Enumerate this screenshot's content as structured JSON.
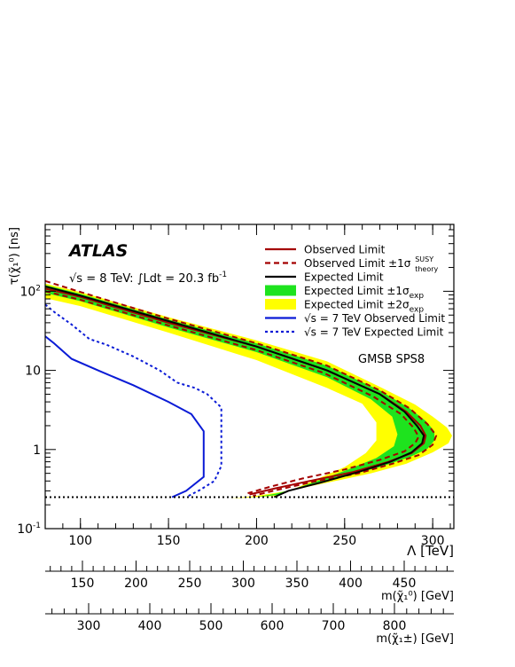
{
  "chart_data": {
    "type": "line",
    "experiment_label": "ATLAS",
    "energy_text": "√s = 8 TeV: ∫Ldt = 20.3 fb",
    "lumi_unit_exp": "-1",
    "model_label": "GMSB SPS8",
    "xlabel": "Λ [TeV]",
    "ylabel": "τ(χ̃₁⁰)  [ns]",
    "xlim": [
      80,
      312
    ],
    "ylim_log": [
      0.1,
      700
    ],
    "x_ticks": [
      "100",
      "150",
      "200",
      "250",
      "300"
    ],
    "y_ticks": [
      {
        "base": "10",
        "exp": "-1",
        "value": 0.1
      },
      {
        "base": "1",
        "exp": "",
        "value": 1
      },
      {
        "base": "10",
        "exp": "",
        "value": 10
      },
      {
        "base": "10",
        "exp": "2",
        "value": 100
      }
    ],
    "legend": [
      {
        "name": "Observed Limit",
        "sup": "",
        "sub": "",
        "style": "solid",
        "color": "#a40000"
      },
      {
        "name": "Observed Limit ±1σ",
        "sup": "SUSY",
        "sub": "theory",
        "style": "dashed",
        "color": "#a40000"
      },
      {
        "name": "Expected Limit",
        "sup": "",
        "sub": "",
        "style": "solid",
        "color": "#000000"
      },
      {
        "name": "Expected Limit ±1σ",
        "sup": "",
        "sub": "exp",
        "style": "band",
        "color": "#1ee31e"
      },
      {
        "name": "Expected Limit ±2σ",
        "sup": "",
        "sub": "exp",
        "style": "band",
        "color": "#ffff00"
      },
      {
        "name": "√s = 7 TeV Observed Limit",
        "sup": "",
        "sub": "",
        "style": "solid",
        "color": "#0a1bd6"
      },
      {
        "name": "√s = 7 TeV Expected Limit",
        "sup": "",
        "sub": "",
        "style": "dotted",
        "color": "#0a1bd6"
      }
    ],
    "series": [
      {
        "name": "Observed Limit",
        "x": [
          80,
          100,
          150,
          200,
          240,
          270,
          285,
          293,
          296,
          295,
          288,
          275,
          255,
          230,
          210,
          196
        ],
        "y": [
          108,
          85,
          40,
          20,
          10,
          5,
          3,
          2,
          1.5,
          1.2,
          0.9,
          0.7,
          0.52,
          0.4,
          0.32,
          0.27
        ]
      },
      {
        "name": "Observed Limit +1σ",
        "x": [
          80,
          100,
          150,
          200,
          240,
          270,
          287,
          297,
          302,
          300,
          292,
          278,
          258,
          232,
          212,
          198
        ],
        "y": [
          135,
          98,
          45,
          22,
          11.5,
          5.6,
          3.3,
          2.1,
          1.5,
          1.15,
          0.85,
          0.67,
          0.5,
          0.39,
          0.31,
          0.26
        ]
      },
      {
        "name": "Observed Limit -1σ",
        "x": [
          80,
          100,
          150,
          200,
          238,
          266,
          282,
          289,
          292,
          290,
          284,
          270,
          250,
          226,
          208,
          195
        ],
        "y": [
          100,
          78,
          37,
          18,
          9.3,
          4.7,
          2.8,
          1.9,
          1.45,
          1.2,
          0.95,
          0.74,
          0.56,
          0.43,
          0.34,
          0.28
        ]
      },
      {
        "name": "Expected Limit",
        "x": [
          80,
          100,
          150,
          200,
          240,
          270,
          284,
          291,
          295,
          294,
          288,
          276,
          258,
          236,
          218,
          210
        ],
        "y": [
          115,
          88,
          42,
          20,
          10,
          5,
          3,
          2,
          1.5,
          1.2,
          0.92,
          0.7,
          0.52,
          0.38,
          0.3,
          0.25
        ]
      },
      {
        "name": "√s = 7 TeV Observed Limit",
        "x": [
          80,
          85,
          95,
          110,
          130,
          150,
          163,
          170,
          170,
          160,
          152
        ],
        "y": [
          27,
          22,
          14,
          10,
          6.5,
          4,
          2.8,
          1.7,
          0.45,
          0.3,
          0.25
        ]
      },
      {
        "name": "√s = 7 TeV Expected Limit",
        "x": [
          80,
          85,
          95,
          105,
          115,
          130,
          145,
          155,
          165,
          172,
          180,
          180,
          176,
          168,
          160
        ],
        "y": [
          68,
          55,
          38,
          25,
          21,
          15,
          10,
          7,
          6,
          5,
          3.4,
          0.62,
          0.4,
          0.31,
          0.25
        ]
      }
    ],
    "bands": [
      {
        "name": "Expected Limit ±2σ",
        "outer_x": [
          80,
          100,
          150,
          200,
          240,
          270,
          290,
          300,
          308,
          311,
          309,
          300,
          285,
          265,
          240,
          218,
          200,
          185
        ],
        "outer_y": [
          125,
          98,
          47,
          24,
          13,
          6.2,
          3.7,
          2.6,
          1.9,
          1.5,
          1.2,
          0.92,
          0.66,
          0.5,
          0.38,
          0.3,
          0.26,
          0.24
        ],
        "inner_x": [
          80,
          100,
          150,
          200,
          240,
          260,
          268,
          268,
          262,
          250,
          235,
          220,
          212
        ],
        "inner_y": [
          82,
          65,
          30,
          13.5,
          6,
          3.8,
          2.2,
          1.3,
          0.9,
          0.6,
          0.43,
          0.31,
          0.26
        ]
      },
      {
        "name": "Expected Limit ±1σ",
        "outer_x": [
          80,
          100,
          150,
          200,
          240,
          270,
          287,
          296,
          301,
          301,
          297,
          287,
          270,
          248,
          228,
          212,
          200
        ],
        "outer_y": [
          120,
          93,
          44,
          22,
          11.5,
          5.6,
          3.3,
          2.3,
          1.7,
          1.3,
          1.02,
          0.8,
          0.6,
          0.45,
          0.35,
          0.28,
          0.25
        ],
        "inner_x": [
          80,
          100,
          150,
          200,
          240,
          265,
          277,
          280,
          278,
          268,
          252,
          236,
          222,
          214
        ],
        "inner_y": [
          95,
          75,
          35,
          17,
          8.2,
          4.3,
          2.6,
          1.55,
          1.1,
          0.78,
          0.56,
          0.41,
          0.32,
          0.27
        ]
      }
    ],
    "reference_line": {
      "y": 0.25,
      "style": "dotted"
    },
    "secondary_axes": [
      {
        "label": "m(χ̃₁⁰) [GeV]",
        "ticks": [
          "150",
          "200",
          "250",
          "300",
          "350",
          "400",
          "450"
        ]
      },
      {
        "label": "m(χ̃₁±) [GeV]",
        "ticks": [
          "300",
          "400",
          "500",
          "600",
          "700",
          "800"
        ]
      }
    ]
  }
}
